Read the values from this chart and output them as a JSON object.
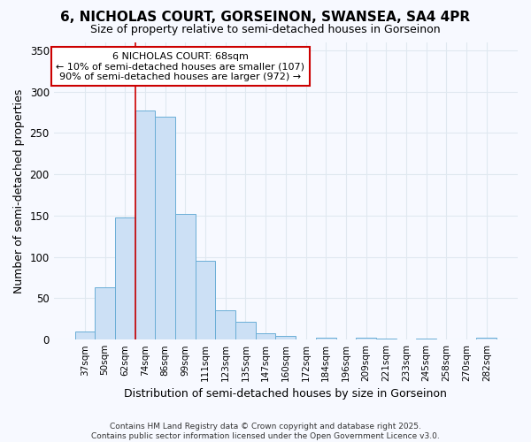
{
  "title_line1": "6, NICHOLAS COURT, GORSEINON, SWANSEA, SA4 4PR",
  "title_line2": "Size of property relative to semi-detached houses in Gorseinon",
  "xlabel": "Distribution of semi-detached houses by size in Gorseinon",
  "ylabel": "Number of semi-detached properties",
  "categories": [
    "37sqm",
    "50sqm",
    "62sqm",
    "74sqm",
    "86sqm",
    "99sqm",
    "111sqm",
    "123sqm",
    "135sqm",
    "147sqm",
    "160sqm",
    "172sqm",
    "184sqm",
    "196sqm",
    "209sqm",
    "221sqm",
    "233sqm",
    "245sqm",
    "258sqm",
    "270sqm",
    "282sqm"
  ],
  "values": [
    10,
    63,
    148,
    277,
    270,
    152,
    95,
    36,
    22,
    8,
    4,
    0,
    2,
    0,
    2,
    1,
    0,
    1,
    0,
    0,
    2
  ],
  "bar_color": "#cce0f5",
  "bar_edge_color": "#6aaed6",
  "background_color": "#f7f9ff",
  "grid_color": "#e0e8f0",
  "red_line_x": 2.5,
  "annotation_line1": "6 NICHOLAS COURT: 68sqm",
  "annotation_line2": "← 10% of semi-detached houses are smaller (107)",
  "annotation_line3": "90% of semi-detached houses are larger (972) →",
  "annotation_box_color": "#ffffff",
  "annotation_box_edge": "#cc0000",
  "ylim": [
    0,
    360
  ],
  "yticks": [
    0,
    50,
    100,
    150,
    200,
    250,
    300,
    350
  ],
  "footer_text": "Contains HM Land Registry data © Crown copyright and database right 2025.\nContains public sector information licensed under the Open Government Licence v3.0.",
  "property_line_color": "#cc0000",
  "title_fontsize": 11,
  "subtitle_fontsize": 9,
  "ylabel_fontsize": 9,
  "xlabel_fontsize": 9
}
